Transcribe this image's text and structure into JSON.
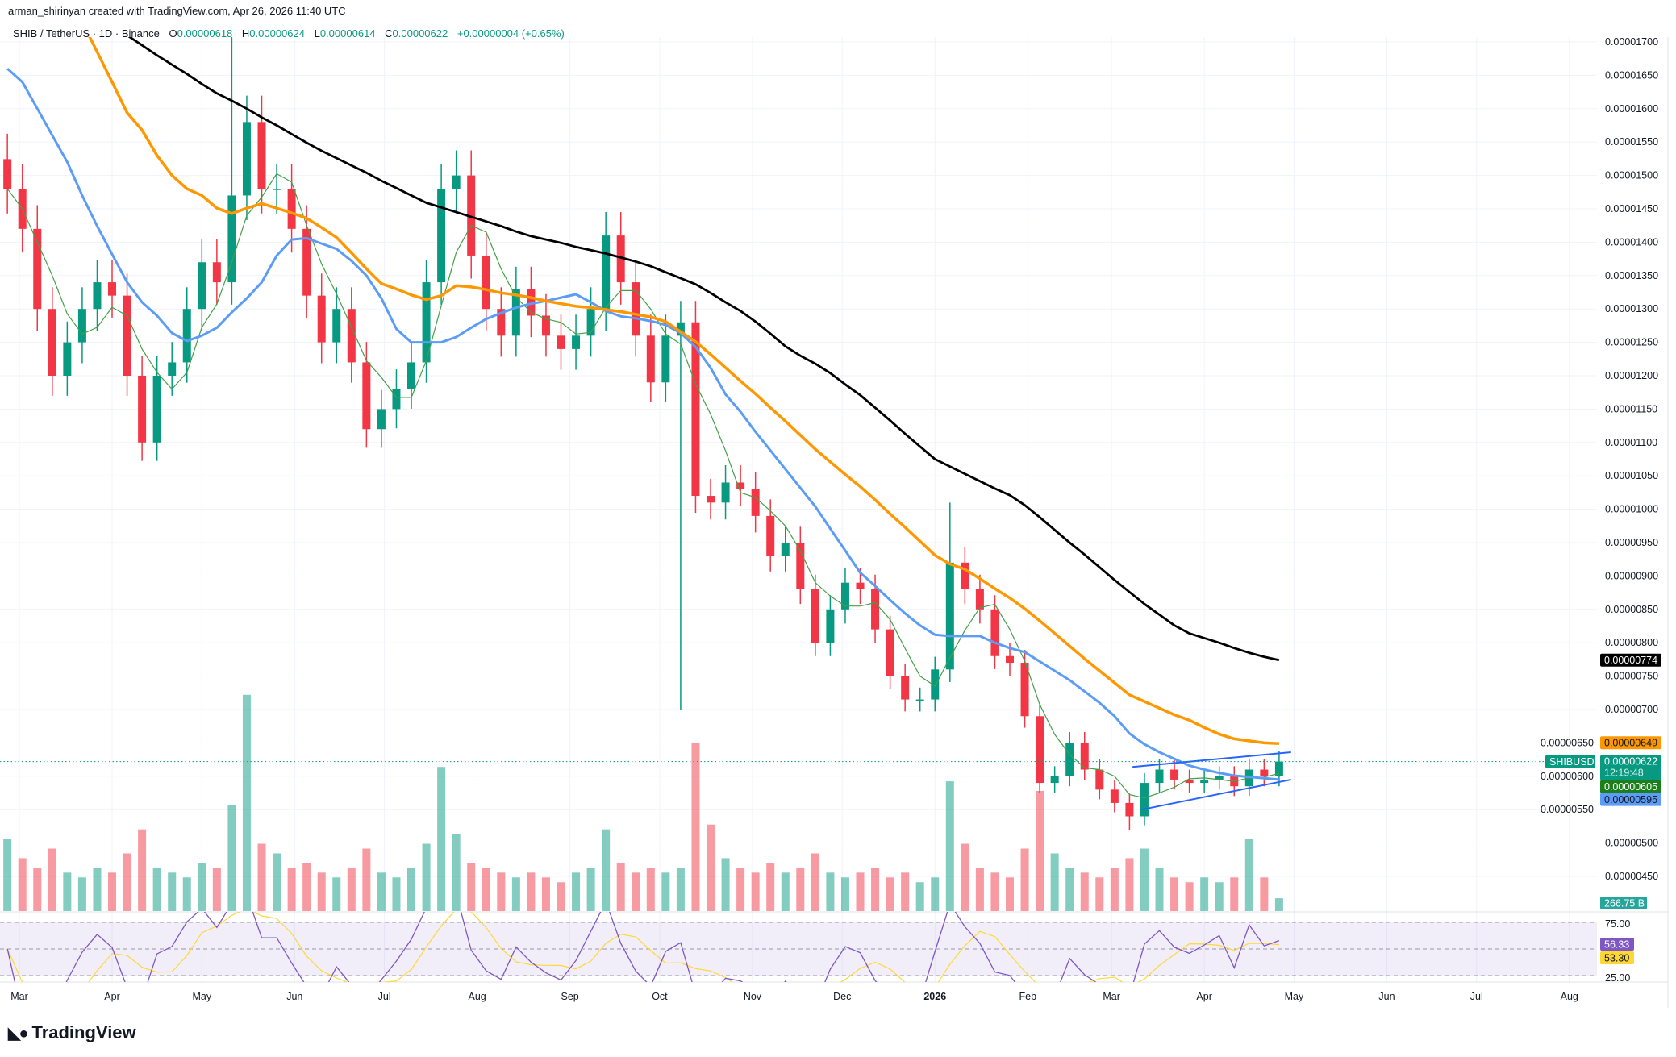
{
  "header": {
    "credit": "arman_shirinyan created with TradingView.com, Apr 26, 2026 11:40 UTC",
    "symbol": "SHIB / TetherUS · 1D · Binance",
    "o_label": "O",
    "o": "0.00000618",
    "h_label": "H",
    "h": "0.00000624",
    "l_label": "L",
    "l": "0.00000614",
    "c_label": "C",
    "c": "0.00000622",
    "change": "+0.00000004 (+0.65%)"
  },
  "branding": {
    "logo": "TradingView"
  },
  "colors": {
    "up": "#089981",
    "down": "#f23645",
    "ma200": "#000000",
    "ma100": "#ff9800",
    "ma50": "#5b9cf6",
    "ma20": "#43a047",
    "trendline": "#2962ff",
    "rsi": "#7e57c2",
    "rsi_ma": "#fdd835"
  },
  "chart_data": {
    "type": "candlestick",
    "symbol": "SHIBUSDT",
    "start_date": "2025-02-25",
    "interval_days": 5,
    "closes": [
      1.48e-05,
      1.42e-05,
      1.3e-05,
      1.2e-05,
      1.25e-05,
      1.3e-05,
      1.34e-05,
      1.32e-05,
      1.2e-05,
      1.1e-05,
      1.2e-05,
      1.22e-05,
      1.3e-05,
      1.37e-05,
      1.34e-05,
      1.47e-05,
      1.58e-05,
      1.48e-05,
      1.48e-05,
      1.42e-05,
      1.32e-05,
      1.25e-05,
      1.3e-05,
      1.22e-05,
      1.12e-05,
      1.15e-05,
      1.18e-05,
      1.22e-05,
      1.34e-05,
      1.48e-05,
      1.5e-05,
      1.38e-05,
      1.3e-05,
      1.26e-05,
      1.33e-05,
      1.29e-05,
      1.26e-05,
      1.24e-05,
      1.26e-05,
      1.3e-05,
      1.41e-05,
      1.34e-05,
      1.26e-05,
      1.19e-05,
      1.26e-05,
      1.28e-05,
      1.02e-05,
      1.01e-05,
      1.04e-05,
      1.03e-05,
      9.9e-06,
      9.3e-06,
      9.5e-06,
      8.8e-06,
      8e-06,
      8.5e-06,
      8.9e-06,
      8.8e-06,
      8.2e-06,
      7.5e-06,
      7.15e-06,
      7.15e-06,
      7.6e-06,
      9.2e-06,
      8.8e-06,
      8.5e-06,
      7.8e-06,
      7.7e-06,
      6.9e-06,
      5.9e-06,
      6e-06,
      6.5e-06,
      6.1e-06,
      5.8e-06,
      5.6e-06,
      5.4e-06,
      5.9e-06,
      6.1e-06,
      5.95e-06,
      5.9e-06,
      5.95e-06,
      6e-06,
      5.85e-06,
      6.1e-06,
      6e-06,
      6.22e-06
    ],
    "notable_extremes": [
      {
        "date": "2025-05-12",
        "high": 1.72e-05
      },
      {
        "date": "2025-10-10",
        "low": 7e-06
      },
      {
        "date": "2026-01-06",
        "high": 1.01e-05
      },
      {
        "date": "2026-03-06",
        "low": 5.2e-06
      }
    ],
    "volume_billions": [
      1500,
      1100,
      900,
      1300,
      800,
      700,
      900,
      800,
      1200,
      1700,
      900,
      800,
      700,
      1000,
      900,
      2200,
      4500,
      1400,
      1200,
      900,
      1000,
      800,
      700,
      900,
      1300,
      800,
      700,
      900,
      1400,
      3000,
      1600,
      1000,
      900,
      800,
      700,
      800,
      700,
      600,
      800,
      900,
      1700,
      1000,
      800,
      900,
      800,
      900,
      3500,
      1800,
      1100,
      900,
      800,
      1000,
      800,
      900,
      1200,
      800,
      700,
      800,
      900,
      700,
      800,
      600,
      700,
      2700,
      1400,
      900,
      800,
      700,
      1300,
      2500,
      1200,
      900,
      800,
      700,
      900,
      1100,
      1300,
      900,
      700,
      600,
      700,
      600,
      700,
      1500,
      700,
      266.75
    ],
    "moving_averages": [
      {
        "name": "MA200",
        "values": [
          1.82e-05,
          1.806e-05,
          1.792e-05,
          1.778e-05,
          1.764e-05,
          1.75e-05,
          1.736e-05,
          1.722e-05,
          1.71e-05,
          1.695e-05,
          1.68e-05,
          1.666e-05,
          1.652e-05,
          1.637e-05,
          1.623e-05,
          1.612e-05,
          1.6e-05,
          1.587e-05,
          1.575e-05,
          1.562e-05,
          1.549e-05,
          1.537e-05,
          1.526e-05,
          1.515e-05,
          1.504e-05,
          1.492e-05,
          1.481e-05,
          1.47e-05,
          1.459e-05,
          1.452e-05,
          1.445e-05,
          1.438e-05,
          1.431e-05,
          1.424e-05,
          1.416e-05,
          1.409e-05,
          1.404e-05,
          1.399e-05,
          1.393e-05,
          1.388e-05,
          1.383e-05,
          1.377e-05,
          1.371e-05,
          1.364e-05,
          1.355e-05,
          1.346e-05,
          1.337e-05,
          1.324e-05,
          1.31e-05,
          1.297e-05,
          1.281e-05,
          1.263e-05,
          1.244e-05,
          1.23e-05,
          1.218e-05,
          1.204e-05,
          1.187e-05,
          1.171e-05,
          1.152e-05,
          1.133e-05,
          1.113e-05,
          1.094e-05,
          1.075e-05,
          1.064e-05,
          1.053e-05,
          1.042e-05,
          1.031e-05,
          1.021e-05,
          1.006e-05,
          9.88e-06,
          9.69e-06,
          9.5e-06,
          9.32e-06,
          9.13e-06,
          8.94e-06,
          8.76e-06,
          8.58e-06,
          8.42e-06,
          8.26e-06,
          8.14e-06,
          8.07e-06,
          8e-06,
          7.92e-06,
          7.85e-06,
          7.79e-06,
          7.74e-06
        ],
        "last": "0.00000774"
      },
      {
        "name": "MA100",
        "values": [
          1.9e-05,
          1.86e-05,
          1.82e-05,
          1.79e-05,
          1.76e-05,
          1.73e-05,
          1.685e-05,
          1.64e-05,
          1.594e-05,
          1.568e-05,
          1.53e-05,
          1.5e-05,
          1.48e-05,
          1.47e-05,
          1.451e-05,
          1.443e-05,
          1.451e-05,
          1.458e-05,
          1.451e-05,
          1.444e-05,
          1.436e-05,
          1.422e-05,
          1.407e-05,
          1.384e-05,
          1.36e-05,
          1.338e-05,
          1.33e-05,
          1.321e-05,
          1.314e-05,
          1.32e-05,
          1.335e-05,
          1.333e-05,
          1.329e-05,
          1.324e-05,
          1.321e-05,
          1.317e-05,
          1.312e-05,
          1.308e-05,
          1.304e-05,
          1.302e-05,
          1.299e-05,
          1.296e-05,
          1.292e-05,
          1.288e-05,
          1.281e-05,
          1.266e-05,
          1.251e-05,
          1.232e-05,
          1.212e-05,
          1.192e-05,
          1.173e-05,
          1.152e-05,
          1.132e-05,
          1.111e-05,
          1.09e-05,
          1.071e-05,
          1.052e-05,
          1.034e-05,
          1.014e-05,
          9.93e-06,
          9.73e-06,
          9.52e-06,
          9.31e-06,
          9.18e-06,
          9.1e-06,
          8.96e-06,
          8.81e-06,
          8.67e-06,
          8.51e-06,
          8.33e-06,
          8.14e-06,
          7.95e-06,
          7.76e-06,
          7.58e-06,
          7.4e-06,
          7.22e-06,
          7.12e-06,
          7.02e-06,
          6.92e-06,
          6.84e-06,
          6.73e-06,
          6.63e-06,
          6.56e-06,
          6.53e-06,
          6.5e-06,
          6.49e-06
        ],
        "last": "0.00000649"
      },
      {
        "name": "MA50",
        "values": [
          1.66e-05,
          1.64e-05,
          1.6e-05,
          1.56e-05,
          1.52e-05,
          1.47e-05,
          1.424e-05,
          1.382e-05,
          1.34e-05,
          1.31e-05,
          1.29e-05,
          1.264e-05,
          1.252e-05,
          1.26e-05,
          1.272e-05,
          1.295e-05,
          1.316e-05,
          1.34e-05,
          1.38e-05,
          1.404e-05,
          1.406e-05,
          1.398e-05,
          1.39e-05,
          1.372e-05,
          1.35e-05,
          1.316e-05,
          1.27e-05,
          1.25e-05,
          1.25e-05,
          1.25e-05,
          1.258e-05,
          1.272e-05,
          1.285e-05,
          1.294e-05,
          1.302e-05,
          1.308e-05,
          1.312e-05,
          1.317e-05,
          1.322e-05,
          1.31e-05,
          1.297e-05,
          1.289e-05,
          1.286e-05,
          1.282e-05,
          1.276e-05,
          1.264e-05,
          1.243e-05,
          1.212e-05,
          1.172e-05,
          1.146e-05,
          1.116e-05,
          1.088e-05,
          1.06e-05,
          1.032e-05,
          1.004e-05,
          9.71e-06,
          9.38e-06,
          9.05e-06,
          8.85e-06,
          8.64e-06,
          8.44e-06,
          8.26e-06,
          8.12e-06,
          8.1e-06,
          8.1e-06,
          8.1e-06,
          8e-06,
          7.92e-06,
          7.86e-06,
          7.72e-06,
          7.58e-06,
          7.44e-06,
          7.27e-06,
          7.1e-06,
          6.9e-06,
          6.64e-06,
          6.48e-06,
          6.36e-06,
          6.26e-06,
          6.16e-06,
          6.1e-06,
          6.05e-06,
          6.01e-06,
          5.99e-06,
          5.97e-06,
          5.95e-06
        ],
        "last": "0.00000595"
      },
      {
        "name": "MA20",
        "last": "0.00000605"
      }
    ],
    "trendlines": [
      {
        "from": [
          "2026-03-08",
          6.14e-06
        ],
        "to": [
          "2026-04-30",
          6.36e-06
        ]
      },
      {
        "from": [
          "2026-03-11",
          5.5e-06
        ],
        "to": [
          "2026-04-30",
          5.95e-06
        ]
      }
    ],
    "price_axis_ticks": [
      "0.00001700",
      "0.00001650",
      "0.00001600",
      "0.00001550",
      "0.00001500",
      "0.00001450",
      "0.00001400",
      "0.00001350",
      "0.00001300",
      "0.00001250",
      "0.00001200",
      "0.00001150",
      "0.00001100",
      "0.00001050",
      "0.00001000",
      "0.00000950",
      "0.00000900",
      "0.00000850",
      "0.00000800",
      "0.00000750",
      "0.00000700",
      "0.00000650",
      "0.00000600",
      "0.00000550",
      "0.00000500",
      "0.00000450"
    ],
    "time_axis_ticks": [
      {
        "label": "Mar",
        "date": "2025-03-01"
      },
      {
        "label": "Apr",
        "date": "2025-04-01"
      },
      {
        "label": "May",
        "date": "2025-05-01"
      },
      {
        "label": "Jun",
        "date": "2025-06-01"
      },
      {
        "label": "Jul",
        "date": "2025-07-01"
      },
      {
        "label": "Aug",
        "date": "2025-08-01"
      },
      {
        "label": "Sep",
        "date": "2025-09-01"
      },
      {
        "label": "Oct",
        "date": "2025-10-01"
      },
      {
        "label": "Nov",
        "date": "2025-11-01"
      },
      {
        "label": "Dec",
        "date": "2025-12-01"
      },
      {
        "label": "2026",
        "date": "2026-01-01",
        "bold": true
      },
      {
        "label": "Feb",
        "date": "2026-02-01"
      },
      {
        "label": "Mar",
        "date": "2026-03-01"
      },
      {
        "label": "Apr",
        "date": "2026-04-01"
      },
      {
        "label": "May",
        "date": "2026-05-01"
      },
      {
        "label": "Jun",
        "date": "2026-06-01"
      },
      {
        "label": "Jul",
        "date": "2026-07-01"
      },
      {
        "label": "Aug",
        "date": "2026-08-01"
      }
    ],
    "last_price": {
      "symbol_tag": "SHIBUSDT",
      "price": "0.00000622",
      "countdown": "12:19:48"
    },
    "volume_last": "266.75 B",
    "rsi": {
      "ticks": [
        "75.00",
        "25.00"
      ],
      "upper_band": 70,
      "lower_band": 30,
      "value": "56.33",
      "ma_value": "53.30"
    }
  }
}
